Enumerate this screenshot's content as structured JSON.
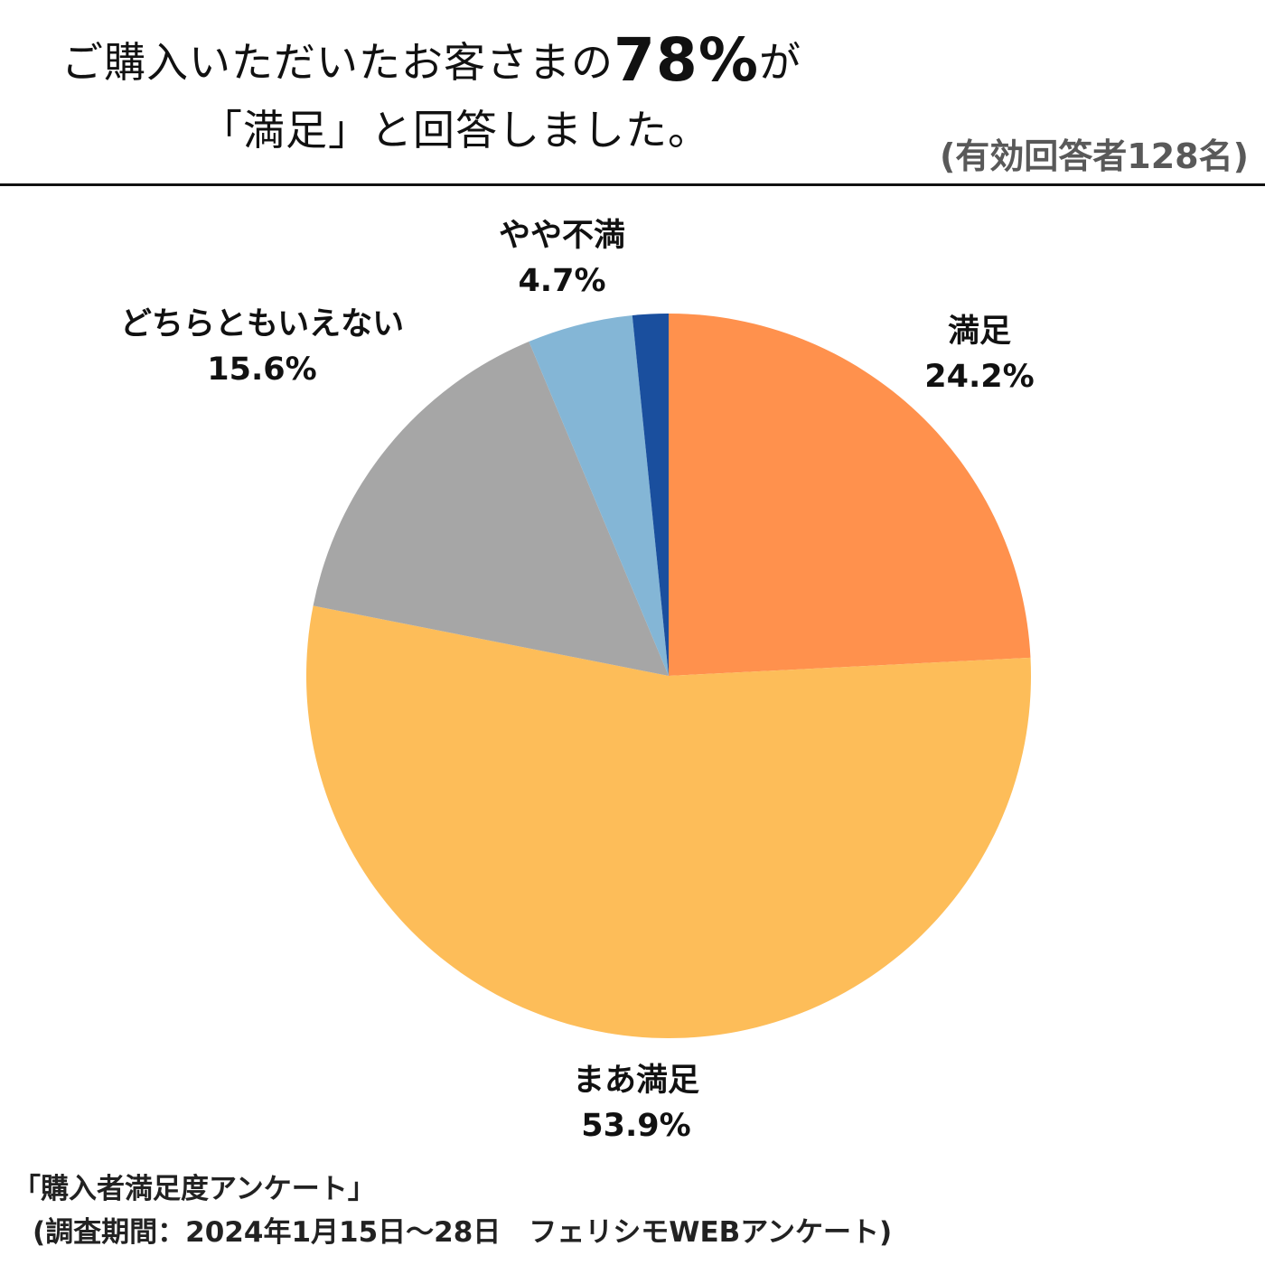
{
  "header": {
    "title_prefix": "ご購入いただいたお客さまの",
    "title_highlight": "78%",
    "title_suffix": "が",
    "title_line2": "「満足」と回答しました。",
    "sample_note": "(有効回答者128名)"
  },
  "chart_data": {
    "type": "pie",
    "start_angle_deg": 0,
    "direction": "clockwise",
    "legend": "none",
    "slices": [
      {
        "label": "満足",
        "value": 24.2,
        "value_label": "24.2%",
        "color": "#FF914D"
      },
      {
        "label": "まあ満足",
        "value": 53.9,
        "value_label": "53.9%",
        "color": "#FDBD59"
      },
      {
        "label": "どちらともいえない",
        "value": 15.6,
        "value_label": "15.6%",
        "color": "#A6A6A6"
      },
      {
        "label": "やや不満",
        "value": 4.7,
        "value_label": "4.7%",
        "color": "#84B6D6"
      },
      {
        "label": "",
        "value": 1.6,
        "value_label": "",
        "color": "#1A4F9E"
      }
    ]
  },
  "footer": {
    "survey_name": "「購入者満足度アンケート」",
    "survey_period": "(調査期間：2024年1月15日～28日　フェリシモWEBアンケート)"
  }
}
